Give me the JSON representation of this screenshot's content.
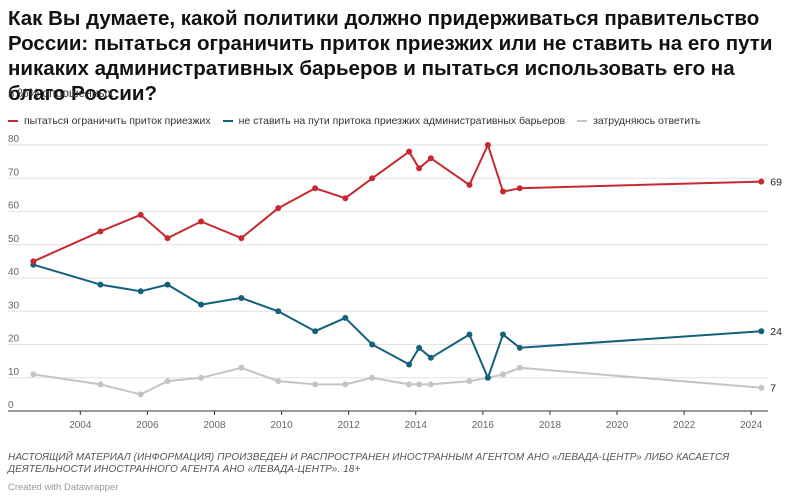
{
  "chart_data": {
    "type": "line",
    "title": "Как Вы думаете, какой политики должно придерживаться правительство России: пытаться ограничить приток приезжих или не ставить на его пути никаких административных барьеров и пытаться использовать его на благо России?",
    "subtitle": "в %% опрошенных",
    "xlim": [
      2002.5,
      2024.5
    ],
    "ylim": [
      0,
      80
    ],
    "x_ticks": [
      2004,
      2006,
      2008,
      2010,
      2012,
      2014,
      2016,
      2018,
      2020,
      2022,
      2024
    ],
    "y_ticks": [
      0,
      10,
      20,
      30,
      40,
      50,
      60,
      70,
      80
    ],
    "grid": "horizontal",
    "legend_position": "top-left",
    "series": [
      {
        "name": "пытаться ограничить приток приезжих",
        "color": "#c62a2f",
        "x": [
          2002.6,
          2004.6,
          2005.8,
          2006.6,
          2007.6,
          2008.8,
          2009.9,
          2011.0,
          2011.9,
          2012.7,
          2013.8,
          2014.1,
          2014.45,
          2015.6,
          2016.15,
          2016.6,
          2017.1,
          2024.3
        ],
        "y": [
          45,
          54,
          59,
          52,
          57,
          52,
          61,
          67,
          64,
          70,
          78,
          73,
          76,
          68,
          80,
          66,
          67,
          69
        ],
        "end_label": "69"
      },
      {
        "name": "не ставить на пути притока приезжих административных барьеров",
        "color": "#15607a",
        "x": [
          2002.6,
          2004.6,
          2005.8,
          2006.6,
          2007.6,
          2008.8,
          2009.9,
          2011.0,
          2011.9,
          2012.7,
          2013.8,
          2014.1,
          2014.45,
          2015.6,
          2016.15,
          2016.6,
          2017.1,
          2024.3
        ],
        "y": [
          44,
          38,
          36,
          38,
          32,
          34,
          30,
          24,
          28,
          20,
          14,
          19,
          16,
          23,
          10,
          23,
          19,
          24
        ],
        "end_label": "24"
      },
      {
        "name": "затрудняюсь ответить",
        "color": "#c4c4c4",
        "x": [
          2002.6,
          2004.6,
          2005.8,
          2006.6,
          2007.6,
          2008.8,
          2009.9,
          2011.0,
          2011.9,
          2012.7,
          2013.8,
          2014.1,
          2014.45,
          2015.6,
          2016.15,
          2016.6,
          2017.1,
          2024.3
        ],
        "y": [
          11,
          8,
          5,
          9,
          10,
          13,
          9,
          8,
          8,
          10,
          8,
          8,
          8,
          9,
          10,
          11,
          13,
          7
        ],
        "end_label": "7"
      }
    ]
  },
  "footnote": "НАСТОЯЩИЙ МАТЕРИАЛ (ИНФОРМАЦИЯ) ПРОИЗВЕДЕН И РАСПРОСТРАНЕН ИНОСТРАННЫМ АГЕНТОМ АНО «ЛЕВАДА-ЦЕНТР» ЛИБО КАСАЕТСЯ ДЕЯТЕЛЬНОСТИ ИНОСТРАННОГО АГЕНТА АНО «ЛЕВАДА-ЦЕНТР». 18+",
  "credit": "Created with Datawrapper"
}
